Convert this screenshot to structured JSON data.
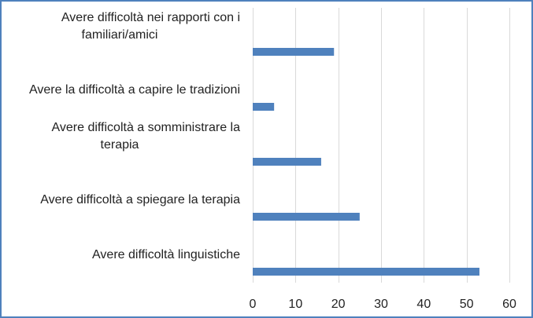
{
  "chart_data": {
    "type": "bar",
    "orientation": "horizontal",
    "categories": [
      "Avere difficoltà nei rapporti con i familiari/amici",
      "Avere la difficoltà a capire le tradizioni",
      "Avere difficoltà a somministrare la terapia",
      "Avere difficoltà a spiegare la terapia",
      "Avere difficoltà linguistiche"
    ],
    "category_label_lines": [
      [
        "Avere difficoltà nei rapporti con i",
        "familiari/amici"
      ],
      [
        "Avere la difficoltà a capire le tradizioni"
      ],
      [
        "Avere difficoltà a somministrare la",
        "terapia"
      ],
      [
        "Avere difficoltà a spiegare la terapia"
      ],
      [
        "Avere difficoltà linguistiche"
      ]
    ],
    "values": [
      19,
      5,
      16,
      25,
      53
    ],
    "xlim": [
      0,
      60
    ],
    "xticks": [
      0,
      10,
      20,
      30,
      40,
      50,
      60
    ],
    "grid": "vertical",
    "legend": "none",
    "bar_color": "#4f81bd",
    "grid_color": "#d9d9d9",
    "frame_color": "#4f81bd"
  }
}
